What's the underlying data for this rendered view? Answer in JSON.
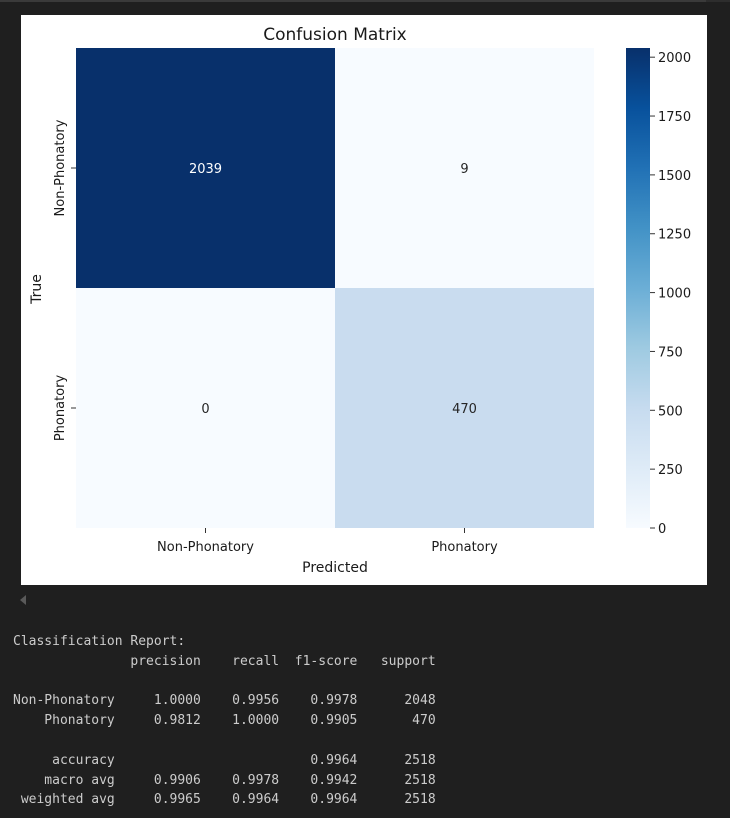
{
  "chart_data": {
    "type": "heatmap",
    "title": "Confusion Matrix",
    "xlabel": "Predicted",
    "ylabel": "True",
    "x_categories": [
      "Non-Phonatory",
      "Phonatory"
    ],
    "y_categories": [
      "Non-Phonatory",
      "Phonatory"
    ],
    "values": [
      [
        2039,
        9
      ],
      [
        0,
        470
      ]
    ],
    "colormap": "Blues",
    "colorbar": {
      "min": 0,
      "max": 2039,
      "ticks": [
        0,
        250,
        500,
        750,
        1000,
        1250,
        1500,
        1750,
        2000
      ]
    },
    "cell_colors": [
      [
        "#08306b",
        "#f7fbff"
      ],
      [
        "#f7fbff",
        "#c9dcef"
      ]
    ],
    "annotation_colors": [
      [
        "#ffffff",
        "#262626"
      ],
      [
        "#262626",
        "#262626"
      ]
    ]
  },
  "report": {
    "lines": [
      "Classification Report:",
      "               precision    recall  f1-score   support",
      "",
      "Non-Phonatory     1.0000    0.9956    0.9978      2048",
      "    Phonatory     0.9812    1.0000    0.9905       470",
      "",
      "     accuracy                         0.9964      2518",
      "    macro avg     0.9906    0.9978    0.9942      2518",
      " weighted avg     0.9965    0.9964    0.9964      2518"
    ]
  }
}
